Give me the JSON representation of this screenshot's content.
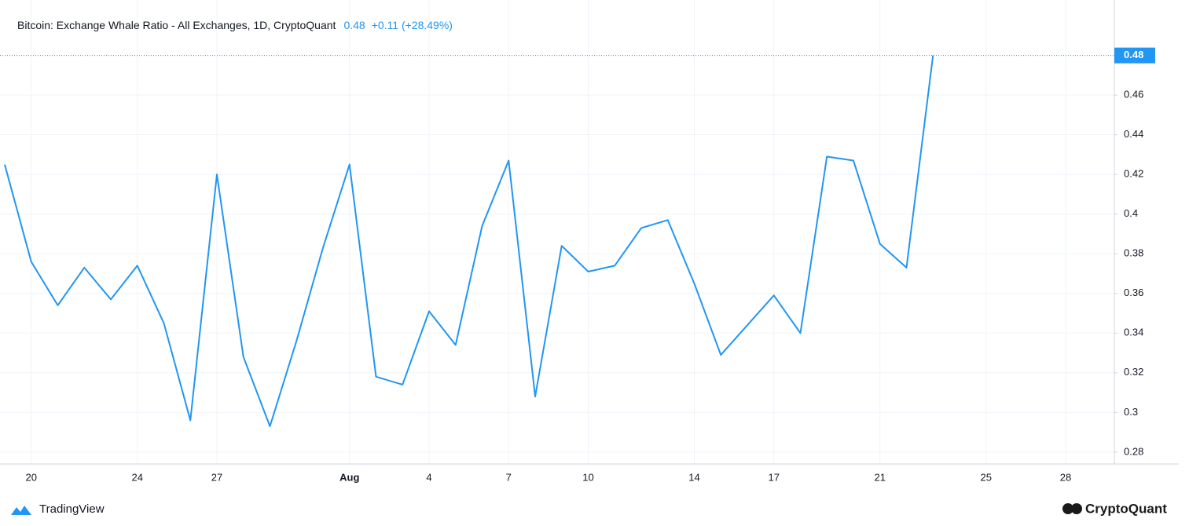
{
  "chart_data": {
    "type": "line",
    "title": "Bitcoin: Exchange Whale Ratio - All Exchanges, 1D, CryptoQuant",
    "change": "+0.11 (+28.49%)",
    "color": "#2196f3",
    "categories": [
      null,
      "20",
      null,
      null,
      null,
      "24",
      null,
      null,
      "27",
      null,
      null,
      null,
      null,
      "Aug",
      null,
      null,
      "4",
      null,
      null,
      "7",
      null,
      null,
      "10",
      null,
      null,
      null,
      "14",
      null,
      null,
      "17",
      null,
      null,
      null,
      "21",
      null,
      null,
      null,
      "25",
      null,
      null,
      "28",
      null,
      null
    ],
    "values": [
      0.425,
      0.376,
      0.354,
      0.373,
      0.357,
      0.374,
      0.345,
      0.296,
      0.42,
      0.328,
      0.293,
      0.336,
      0.383,
      0.425,
      0.318,
      0.314,
      0.351,
      0.334,
      0.394,
      0.427,
      0.308,
      0.384,
      0.371,
      0.374,
      0.393,
      0.397,
      0.365,
      0.329,
      0.344,
      0.359,
      0.34,
      0.429,
      0.427,
      0.385,
      0.373,
      0.48,
      null,
      null,
      null,
      null,
      null,
      null,
      null
    ],
    "ylim": [
      0.274,
      0.504
    ],
    "yticks": [
      0.28,
      0.3,
      0.32,
      0.34,
      0.36,
      0.38,
      0.4,
      0.42,
      0.44,
      0.46
    ],
    "grid": true,
    "source_left": "TradingView",
    "source_right": "CryptoQuant"
  }
}
